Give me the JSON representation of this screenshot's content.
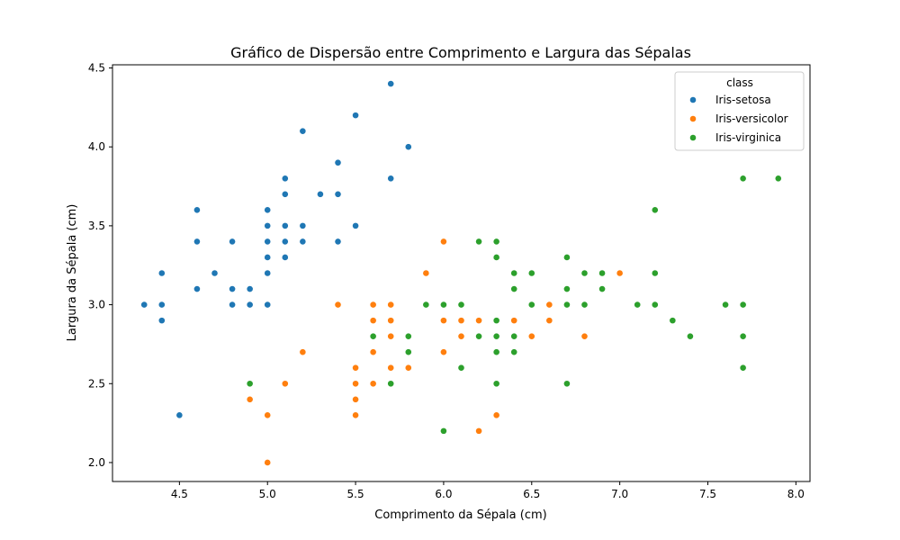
{
  "chart_data": {
    "type": "scatter",
    "title": "Gráfico de Dispersão entre Comprimento e Largura das Sépalas",
    "xlabel": "Comprimento da Sépala (cm)",
    "ylabel": "Largura da Sépala (cm)",
    "xlim": [
      4.12,
      8.08
    ],
    "ylim": [
      1.88,
      4.52
    ],
    "xticks": [
      4.5,
      5.0,
      5.5,
      6.0,
      6.5,
      7.0,
      7.5,
      8.0
    ],
    "xtick_labels": [
      "4.5",
      "5.0",
      "5.5",
      "6.0",
      "6.5",
      "7.0",
      "7.5",
      "8.0"
    ],
    "yticks": [
      2.0,
      2.5,
      3.0,
      3.5,
      4.0,
      4.5
    ],
    "ytick_labels": [
      "2.0",
      "2.5",
      "3.0",
      "3.5",
      "4.0",
      "4.5"
    ],
    "grid": false,
    "legend": {
      "title": "class",
      "position": "top-right"
    },
    "series": [
      {
        "name": "Iris-setosa",
        "color": "#1f77b4",
        "points": [
          [
            5.1,
            3.5
          ],
          [
            4.9,
            3.0
          ],
          [
            4.7,
            3.2
          ],
          [
            4.6,
            3.1
          ],
          [
            5.0,
            3.6
          ],
          [
            5.4,
            3.9
          ],
          [
            4.6,
            3.4
          ],
          [
            5.0,
            3.4
          ],
          [
            4.4,
            2.9
          ],
          [
            4.9,
            3.1
          ],
          [
            5.4,
            3.7
          ],
          [
            4.8,
            3.4
          ],
          [
            4.8,
            3.0
          ],
          [
            4.3,
            3.0
          ],
          [
            5.8,
            4.0
          ],
          [
            5.7,
            4.4
          ],
          [
            5.1,
            3.8
          ],
          [
            5.7,
            3.8
          ],
          [
            5.4,
            3.4
          ],
          [
            4.6,
            3.6
          ],
          [
            4.8,
            3.1
          ],
          [
            5.2,
            3.5
          ],
          [
            5.2,
            3.4
          ],
          [
            5.2,
            4.1
          ],
          [
            5.5,
            4.2
          ],
          [
            5.0,
            3.2
          ],
          [
            5.5,
            3.5
          ],
          [
            4.4,
            3.0
          ],
          [
            4.5,
            2.3
          ],
          [
            4.4,
            3.2
          ],
          [
            5.1,
            3.3
          ],
          [
            5.3,
            3.7
          ],
          [
            5.0,
            3.3
          ],
          [
            5.1,
            3.4
          ],
          [
            5.0,
            3.5
          ],
          [
            5.0,
            3.0
          ],
          [
            5.1,
            3.7
          ]
        ]
      },
      {
        "name": "Iris-versicolor",
        "color": "#ff7f0e",
        "points": [
          [
            7.0,
            3.2
          ],
          [
            6.4,
            3.2
          ],
          [
            6.9,
            3.1
          ],
          [
            5.5,
            2.3
          ],
          [
            6.5,
            2.8
          ],
          [
            5.7,
            2.8
          ],
          [
            6.3,
            3.3
          ],
          [
            4.9,
            2.4
          ],
          [
            6.6,
            2.9
          ],
          [
            5.2,
            2.7
          ],
          [
            5.0,
            2.0
          ],
          [
            5.9,
            3.0
          ],
          [
            6.0,
            2.2
          ],
          [
            6.1,
            2.9
          ],
          [
            5.6,
            2.9
          ],
          [
            6.7,
            3.1
          ],
          [
            5.6,
            3.0
          ],
          [
            5.8,
            2.7
          ],
          [
            6.2,
            2.2
          ],
          [
            5.6,
            2.5
          ],
          [
            5.9,
            3.2
          ],
          [
            6.1,
            2.8
          ],
          [
            6.3,
            2.5
          ],
          [
            6.4,
            2.9
          ],
          [
            6.6,
            3.0
          ],
          [
            6.8,
            2.8
          ],
          [
            6.0,
            2.9
          ],
          [
            5.7,
            2.6
          ],
          [
            5.5,
            2.4
          ],
          [
            5.8,
            2.7
          ],
          [
            6.0,
            2.7
          ],
          [
            5.4,
            3.0
          ],
          [
            6.0,
            3.4
          ],
          [
            6.7,
            3.1
          ],
          [
            6.3,
            2.3
          ],
          [
            5.6,
            3.0
          ],
          [
            5.5,
            2.5
          ],
          [
            5.5,
            2.6
          ],
          [
            6.1,
            3.0
          ],
          [
            5.8,
            2.6
          ],
          [
            5.0,
            2.3
          ],
          [
            5.7,
            3.0
          ],
          [
            5.7,
            2.9
          ],
          [
            6.2,
            2.9
          ],
          [
            5.1,
            2.5
          ],
          [
            5.7,
            2.8
          ],
          [
            5.6,
            2.7
          ],
          [
            6.1,
            2.8
          ]
        ]
      },
      {
        "name": "Iris-virginica",
        "color": "#2ca02c",
        "points": [
          [
            6.3,
            3.3
          ],
          [
            5.8,
            2.7
          ],
          [
            7.1,
            3.0
          ],
          [
            6.3,
            2.9
          ],
          [
            6.5,
            3.0
          ],
          [
            7.6,
            3.0
          ],
          [
            4.9,
            2.5
          ],
          [
            7.3,
            2.9
          ],
          [
            6.7,
            2.5
          ],
          [
            7.2,
            3.6
          ],
          [
            6.5,
            3.2
          ],
          [
            6.4,
            2.7
          ],
          [
            6.8,
            3.0
          ],
          [
            5.7,
            2.5
          ],
          [
            5.8,
            2.8
          ],
          [
            6.4,
            3.2
          ],
          [
            7.7,
            3.8
          ],
          [
            7.7,
            2.6
          ],
          [
            6.0,
            2.2
          ],
          [
            6.9,
            3.2
          ],
          [
            5.6,
            2.8
          ],
          [
            7.7,
            2.8
          ],
          [
            6.3,
            2.7
          ],
          [
            6.7,
            3.3
          ],
          [
            7.2,
            3.2
          ],
          [
            6.2,
            2.8
          ],
          [
            6.1,
            3.0
          ],
          [
            6.4,
            2.8
          ],
          [
            7.2,
            3.0
          ],
          [
            7.4,
            2.8
          ],
          [
            7.9,
            3.8
          ],
          [
            6.3,
            2.8
          ],
          [
            6.1,
            2.6
          ],
          [
            7.7,
            3.0
          ],
          [
            6.3,
            3.4
          ],
          [
            6.4,
            3.1
          ],
          [
            6.0,
            3.0
          ],
          [
            6.9,
            3.1
          ],
          [
            6.7,
            3.1
          ],
          [
            5.8,
            2.7
          ],
          [
            6.8,
            3.2
          ],
          [
            6.7,
            3.0
          ],
          [
            6.3,
            2.5
          ],
          [
            6.5,
            3.0
          ],
          [
            6.2,
            3.4
          ],
          [
            5.9,
            3.0
          ]
        ]
      }
    ]
  }
}
